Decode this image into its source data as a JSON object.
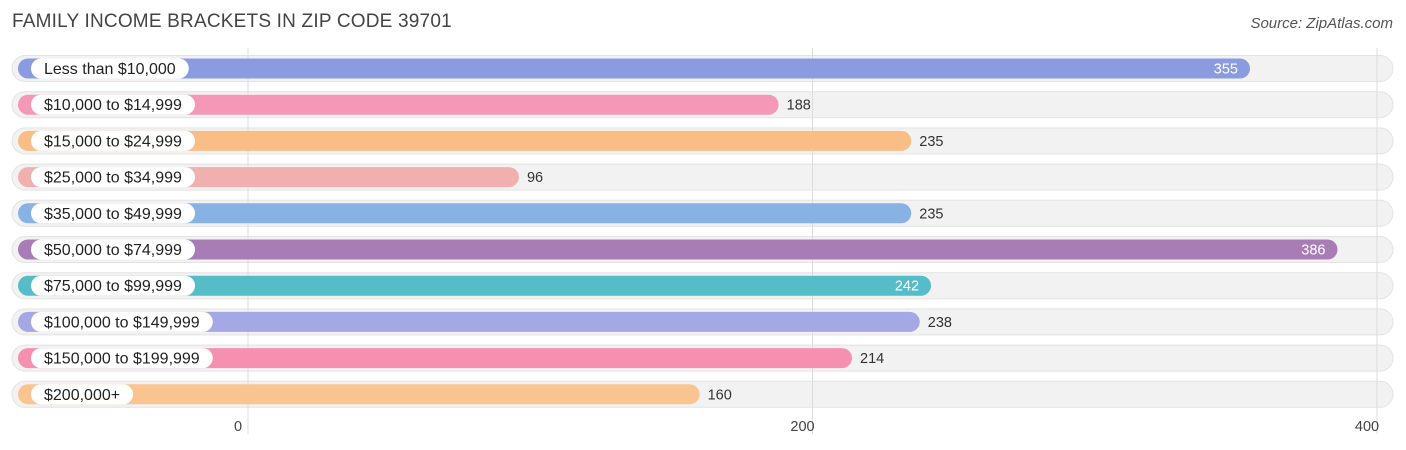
{
  "header": {
    "title": "FAMILY INCOME BRACKETS IN ZIP CODE 39701",
    "source": "Source: ZipAtlas.com"
  },
  "chart_data": {
    "type": "bar",
    "orientation": "horizontal",
    "title": "FAMILY INCOME BRACKETS IN ZIP CODE 39701",
    "categories": [
      "Less than $10,000",
      "$10,000 to $14,999",
      "$15,000 to $24,999",
      "$25,000 to $34,999",
      "$35,000 to $49,999",
      "$50,000 to $74,999",
      "$75,000 to $99,999",
      "$100,000 to $149,999",
      "$150,000 to $199,999",
      "$200,000+"
    ],
    "values": [
      355,
      188,
      235,
      96,
      235,
      386,
      242,
      238,
      214,
      160
    ],
    "value_labels_inside": [
      true,
      false,
      false,
      false,
      false,
      true,
      true,
      false,
      false,
      false
    ],
    "colors": [
      "#8b9be0",
      "#f597b6",
      "#f9bd86",
      "#f0b0ae",
      "#89b2e4",
      "#a87db5",
      "#56bcc7",
      "#a4a9e6",
      "#f590b0",
      "#f9c490"
    ],
    "xlim": [
      0,
      400
    ],
    "xticks": [
      0,
      200,
      400
    ],
    "xtick_labels": [
      "0",
      "200",
      "400"
    ],
    "grid": true
  }
}
